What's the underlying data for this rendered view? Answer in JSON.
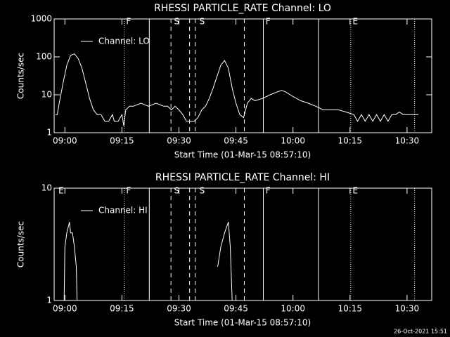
{
  "chart_data": [
    {
      "type": "line",
      "title": "RHESSI PARTICLE_RATE Channel: LO",
      "xlabel": "Start Time (01-Mar-15 08:57:10)",
      "ylabel": "Counts/sec",
      "log_y": true,
      "ylim": [
        1,
        1000
      ],
      "yticks": [
        1,
        10,
        100,
        1000
      ],
      "xlim": [
        -2.83,
        96.5
      ],
      "xticks": [
        {
          "value": 0,
          "label": "09:00"
        },
        {
          "value": 15,
          "label": "09:15"
        },
        {
          "value": 30,
          "label": "09:30"
        },
        {
          "value": 45,
          "label": "09:45"
        },
        {
          "value": 60,
          "label": "10:00"
        },
        {
          "value": 75,
          "label": "10:15"
        },
        {
          "value": 90,
          "label": "10:30"
        }
      ],
      "series": [
        {
          "name": "Channel: LO",
          "color": "#ffffff",
          "x": [
            -2.5,
            -2,
            -1.5,
            -0.5,
            0.5,
            1.5,
            2.5,
            3.5,
            4.5,
            5.5,
            6.5,
            7.5,
            8.5,
            9.5,
            10.5,
            11.5,
            12.5,
            13,
            14,
            15,
            15.5,
            16,
            17,
            18,
            20,
            22,
            24,
            26,
            27,
            28,
            29,
            30,
            31,
            32,
            33,
            34,
            35,
            36,
            37,
            38,
            39,
            40,
            41,
            42,
            43,
            44,
            45,
            46,
            47,
            48,
            49,
            50,
            52,
            54,
            56,
            57,
            58,
            60,
            62,
            64,
            66,
            68,
            70,
            72,
            74,
            76,
            77,
            78,
            79,
            80,
            81,
            82,
            83,
            84,
            85,
            86,
            87,
            88,
            89,
            90,
            92,
            93
          ],
          "values": [
            3,
            3,
            6,
            20,
            60,
            110,
            120,
            90,
            50,
            20,
            8,
            4,
            3,
            3,
            2,
            2,
            3,
            2,
            2,
            3,
            1.5,
            4,
            5,
            5,
            6,
            5,
            6,
            5,
            5,
            4,
            5,
            4,
            3,
            2,
            2,
            2,
            2.5,
            4,
            5,
            8,
            15,
            30,
            60,
            80,
            50,
            15,
            6,
            3,
            2.5,
            6,
            8,
            7,
            8,
            10,
            12,
            13,
            12,
            9,
            7,
            6,
            5,
            4,
            4,
            4,
            3.5,
            3,
            2,
            3,
            2,
            3,
            2,
            3,
            2,
            3,
            2,
            3,
            3,
            3.5,
            3,
            3,
            3,
            3
          ]
        }
      ],
      "vlines": [
        {
          "x": 15.6,
          "style": "dotted"
        },
        {
          "x": 22.2,
          "style": "solid"
        },
        {
          "x": 27.9,
          "style": "dashed"
        },
        {
          "x": 32.8,
          "style": "dashed"
        },
        {
          "x": 34.3,
          "style": "dashed"
        },
        {
          "x": 47.2,
          "style": "dashed"
        },
        {
          "x": 52.2,
          "style": "solid"
        },
        {
          "x": 66.7,
          "style": "solid"
        },
        {
          "x": 75.2,
          "style": "dotted"
        },
        {
          "x": 92.0,
          "style": "dotted"
        }
      ],
      "flags": [
        {
          "x": 16.1,
          "label": "F"
        },
        {
          "x": 28.7,
          "label": "S"
        },
        {
          "x": 35.4,
          "label": "S"
        },
        {
          "x": 52.8,
          "label": "F"
        },
        {
          "x": 75.7,
          "label": "E"
        }
      ]
    },
    {
      "type": "line",
      "title": "RHESSI PARTICLE_RATE Channel: HI",
      "xlabel": "Start Time (01-Mar-15 08:57:10)",
      "ylabel": "Counts/sec",
      "log_y": true,
      "ylim": [
        1,
        10
      ],
      "yticks": [
        1,
        10
      ],
      "xlim": [
        -2.83,
        96.5
      ],
      "xticks": [
        {
          "value": 0,
          "label": "09:00"
        },
        {
          "value": 15,
          "label": "09:15"
        },
        {
          "value": 30,
          "label": "09:30"
        },
        {
          "value": 45,
          "label": "09:45"
        },
        {
          "value": 60,
          "label": "10:00"
        },
        {
          "value": 75,
          "label": "10:15"
        },
        {
          "value": 90,
          "label": "10:30"
        }
      ],
      "series": [
        {
          "name": "Channel: HI",
          "color": "#ffffff",
          "x": [
            -0.2,
            0,
            0.5,
            1.2,
            1.5,
            2,
            2.5,
            3,
            3.2,
            20,
            40.2,
            41,
            42,
            43,
            43.5,
            44
          ],
          "values": [
            1,
            3,
            4,
            5,
            4,
            4,
            3,
            2,
            1,
            null,
            2,
            3,
            4,
            5,
            3,
            1
          ]
        }
      ],
      "vlines": [
        {
          "x": 15.6,
          "style": "dotted"
        },
        {
          "x": 22.2,
          "style": "solid"
        },
        {
          "x": 27.9,
          "style": "dashed"
        },
        {
          "x": 32.8,
          "style": "dashed"
        },
        {
          "x": 34.3,
          "style": "dashed"
        },
        {
          "x": 47.2,
          "style": "dashed"
        },
        {
          "x": 52.2,
          "style": "solid"
        },
        {
          "x": 66.7,
          "style": "solid"
        },
        {
          "x": 75.2,
          "style": "dotted"
        },
        {
          "x": 92.0,
          "style": "dotted"
        }
      ],
      "flags": [
        {
          "x": -1.7,
          "label": "E"
        },
        {
          "x": 16.1,
          "label": "F"
        },
        {
          "x": 28.7,
          "label": "S"
        },
        {
          "x": 35.4,
          "label": "S"
        },
        {
          "x": 52.8,
          "label": "F"
        },
        {
          "x": 75.7,
          "label": "E"
        }
      ]
    }
  ],
  "footer": "26-Oct-2021 15:51"
}
